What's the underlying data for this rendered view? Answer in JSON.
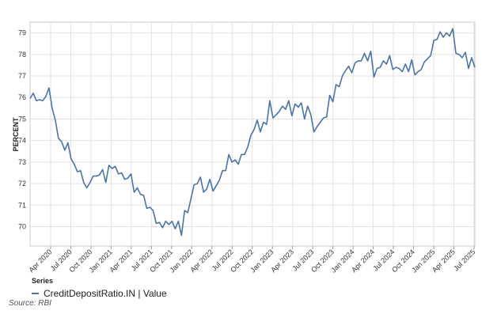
{
  "chart_data": {
    "type": "line",
    "title": "",
    "xlabel": "",
    "ylabel": "PERCENT",
    "ylim": [
      69.1,
      79.5
    ],
    "yticks": [
      70,
      71,
      72,
      73,
      74,
      75,
      76,
      77,
      78,
      79
    ],
    "x_tick_labels": [
      "Apr 2020",
      "Jul 2020",
      "Oct 2020",
      "Jan 2021",
      "Apr 2021",
      "Jul 2021",
      "Oct 2021",
      "Jan 2022",
      "Apr 2022",
      "Jul 2022",
      "Oct 2022",
      "Jan 2023",
      "Apr 2023",
      "Jul 2023",
      "Oct 2023",
      "Jan 2024",
      "Apr 2024",
      "Jul 2024",
      "Oct 2024",
      "Jan 2025",
      "Apr 2025",
      "Jul 2025"
    ],
    "grid": true,
    "legend_title": "Series",
    "legend_position": "bottom-left",
    "series": [
      {
        "name": "CreditDepositRatio.IN | Value",
        "color": "#4a74a8",
        "values": [
          75.95,
          76.2,
          75.85,
          75.9,
          75.85,
          76.05,
          76.45,
          75.5,
          74.95,
          74.1,
          73.95,
          73.55,
          73.9,
          73.15,
          72.9,
          72.55,
          72.6,
          72.05,
          71.8,
          72.05,
          72.35,
          72.35,
          72.4,
          72.65,
          72.05,
          72.85,
          72.7,
          72.8,
          72.45,
          72.5,
          72.2,
          72.25,
          72.45,
          71.6,
          71.8,
          71.5,
          71.45,
          70.85,
          70.9,
          70.75,
          70.15,
          70.2,
          69.95,
          70.25,
          70.1,
          70.25,
          69.9,
          70.25,
          69.6,
          70.75,
          70.65,
          71.3,
          71.95,
          72.0,
          72.3,
          71.6,
          71.75,
          72.2,
          71.65,
          71.9,
          72.15,
          72.6,
          72.6,
          73.35,
          73.0,
          73.1,
          72.9,
          73.35,
          73.35,
          73.7,
          74.25,
          74.5,
          74.95,
          74.4,
          74.85,
          74.75,
          75.85,
          75.05,
          75.2,
          75.35,
          75.6,
          75.45,
          75.85,
          75.15,
          75.7,
          75.55,
          75.75,
          75.0,
          75.6,
          75.2,
          74.4,
          74.65,
          74.85,
          75.05,
          75.1,
          76.1,
          75.8,
          76.6,
          76.5,
          77.0,
          77.25,
          77.45,
          77.15,
          77.6,
          77.7,
          77.7,
          78.05,
          77.7,
          78.15,
          76.95,
          77.35,
          77.4,
          77.7,
          77.55,
          77.95,
          77.3,
          77.4,
          77.35,
          77.2,
          77.55,
          77.2,
          77.75,
          77.05,
          77.2,
          77.3,
          77.65,
          77.8,
          77.95,
          78.65,
          78.7,
          79.05,
          78.8,
          79.0,
          78.85,
          79.2,
          78.05,
          78.0,
          77.85,
          78.1,
          77.35,
          77.85,
          77.4
        ]
      }
    ]
  },
  "source": "Source: RBI"
}
